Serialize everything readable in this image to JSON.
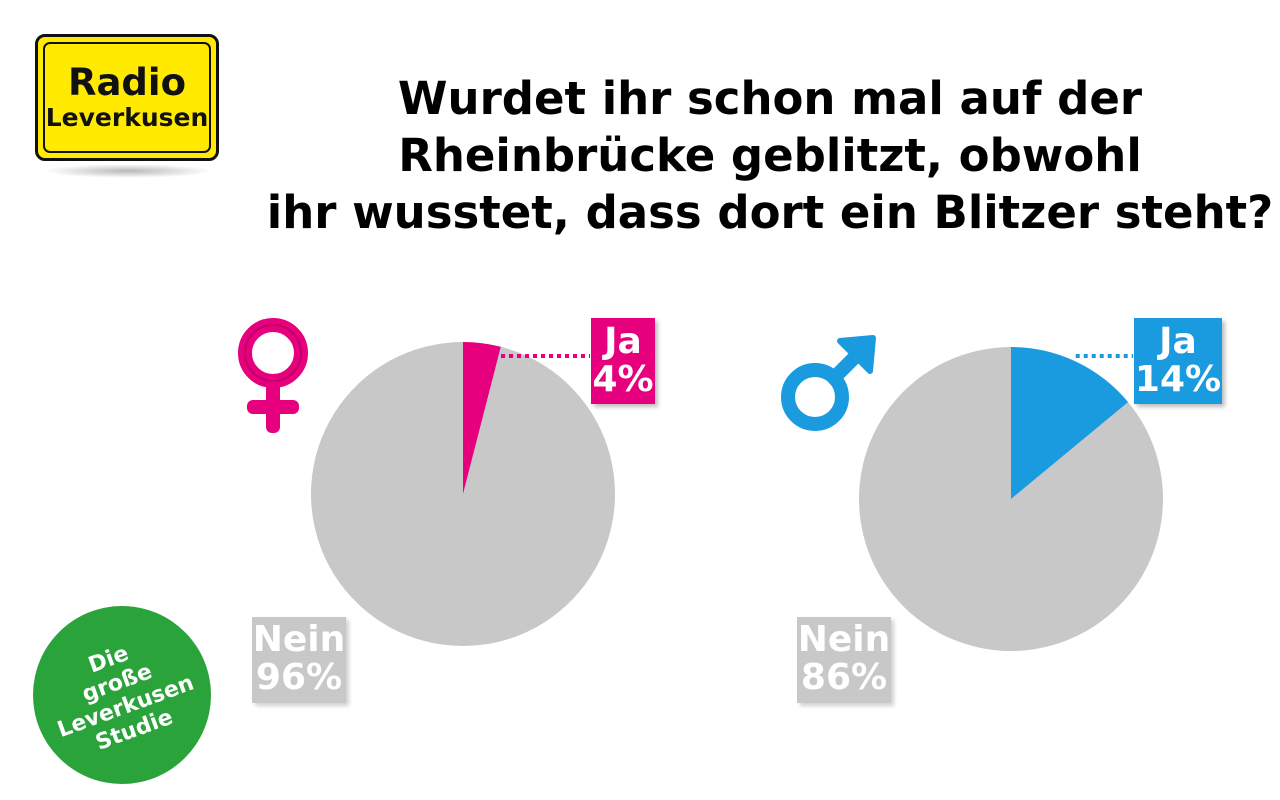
{
  "logo": {
    "line1": "Radio",
    "line2": "Leverkusen",
    "background": "#ffea00"
  },
  "title": {
    "lines": [
      "Wurdet ihr schon mal auf der",
      "Rheinbrücke geblitzt, obwohl",
      "ihr wusstet, dass dort ein Blitzer steht?"
    ]
  },
  "badge": {
    "lines": [
      "Die",
      "große",
      "Leverkusen",
      "Studie"
    ],
    "color": "#2aa33a"
  },
  "chart_data": [
    {
      "type": "pie",
      "group": "female",
      "icon": "female-symbol-icon",
      "title": "",
      "slices": [
        {
          "label": "Ja",
          "value": 4,
          "display": "4%",
          "color": "#e6007e"
        },
        {
          "label": "Nein",
          "value": 96,
          "display": "96%",
          "color": "#c8c8c8"
        }
      ]
    },
    {
      "type": "pie",
      "group": "male",
      "icon": "male-symbol-icon",
      "title": "",
      "slices": [
        {
          "label": "Ja",
          "value": 14,
          "display": "14%",
          "color": "#1a9be0"
        },
        {
          "label": "Nein",
          "value": 86,
          "display": "86%",
          "color": "#c8c8c8"
        }
      ]
    }
  ]
}
